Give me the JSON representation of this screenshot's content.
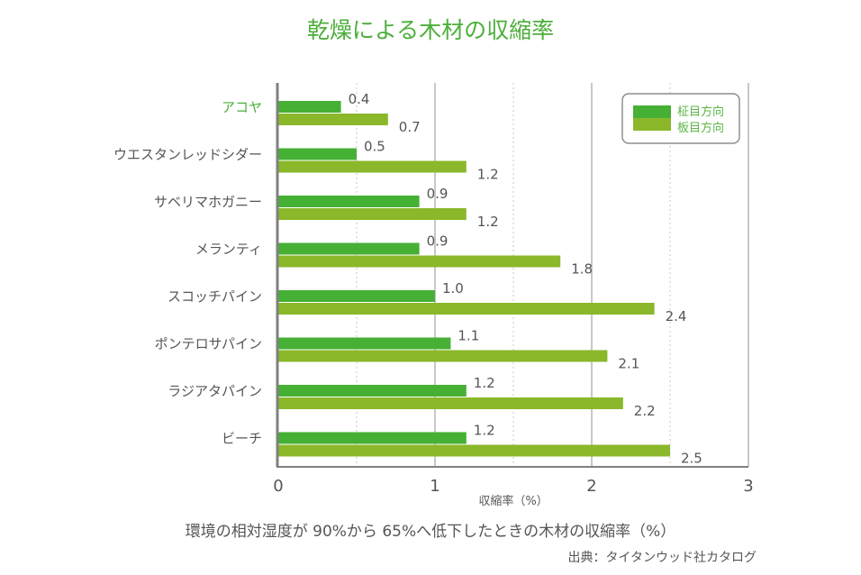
{
  "chart_data": {
    "type": "bar",
    "orientation": "horizontal",
    "title": "乾燥による木材の収縮率",
    "categories": [
      "アコヤ",
      "ウエスタンレッドシダー",
      "サベリマホガニー",
      "メランティ",
      "スコッチパイン",
      "ポンテロサパイン",
      "ラジアタパイン",
      "ビーチ"
    ],
    "highlight_category": "アコヤ",
    "series": [
      {
        "name": "柾目方向",
        "color": "#46b035",
        "values": [
          0.4,
          0.5,
          0.9,
          0.9,
          1.0,
          1.1,
          1.2,
          1.2
        ]
      },
      {
        "name": "板目方向",
        "color": "#8ab82a",
        "values": [
          0.7,
          1.2,
          1.2,
          1.8,
          2.4,
          2.1,
          2.2,
          2.5
        ]
      }
    ],
    "xlabel": "収縮率（%）",
    "ylabel": "",
    "xlim": [
      0,
      3
    ],
    "xticks": [
      "0",
      "1",
      "2",
      "3"
    ],
    "grid": {
      "major": [
        1,
        2
      ],
      "minor_dotted": [
        0.5,
        1.5,
        2.5
      ]
    },
    "legend": {
      "position": "top-right",
      "entries": [
        "柾目方向",
        "板目方向"
      ]
    },
    "caption": "環境の相対湿度が 90%から 65%へ低下したときの木材の収縮率（%）",
    "source": "出典：タイタンウッド社カタログ",
    "colors": {
      "title": "#4cae3a",
      "highlight": "#4cae3a",
      "text": "#555555",
      "axis": "#808080",
      "grid": "#c8c8c8"
    }
  }
}
